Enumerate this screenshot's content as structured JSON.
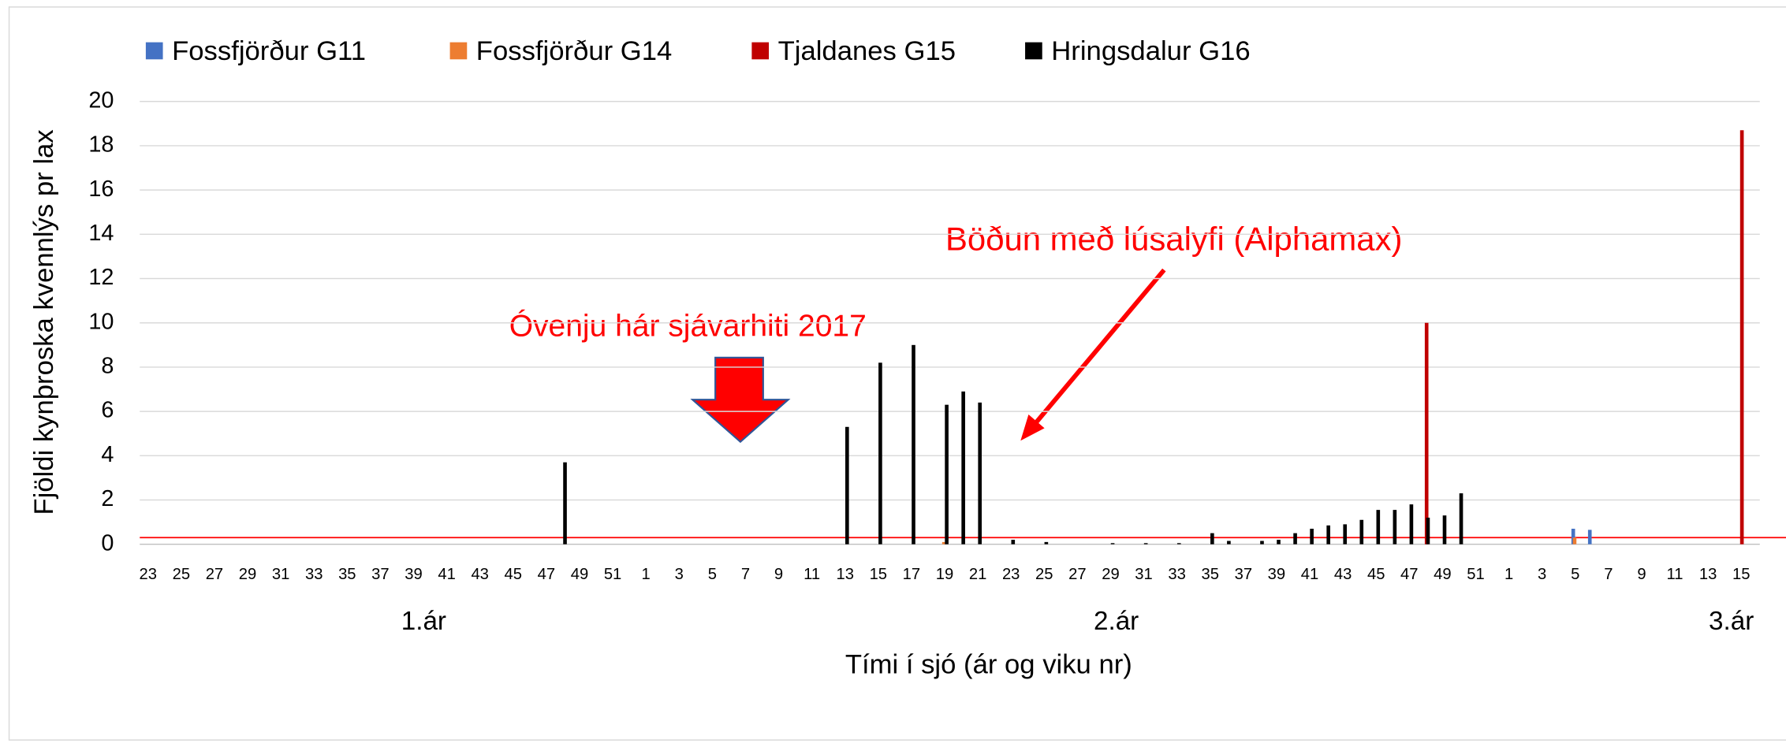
{
  "chart_data": {
    "type": "bar",
    "ylabel": "Fjöldi kynþroska kvennlýs pr lax",
    "xlabel": "Tími í sjó (ár og viku nr)",
    "year_labels": [
      "1.ár",
      "2.ár",
      "3.ár"
    ],
    "annotations": [
      "Óvenju hár sjávarhiti 2017",
      "Böðun með lúsalyfi (Alphamax)"
    ],
    "ylim": [
      0,
      20
    ],
    "yticks": [
      0,
      2,
      4,
      6,
      8,
      10,
      12,
      14,
      16,
      18,
      20
    ],
    "grid": true,
    "legend": "top",
    "threshold": {
      "value": 0.3,
      "color": "#ff0000"
    },
    "categories": [
      23,
      null,
      25,
      null,
      27,
      null,
      29,
      null,
      31,
      null,
      33,
      null,
      35,
      null,
      37,
      null,
      39,
      null,
      41,
      null,
      43,
      null,
      45,
      null,
      47,
      null,
      49,
      null,
      51,
      null,
      1,
      null,
      3,
      null,
      5,
      null,
      7,
      null,
      9,
      null,
      11,
      null,
      13,
      null,
      15,
      null,
      17,
      null,
      19,
      null,
      21,
      null,
      23,
      null,
      25,
      null,
      27,
      null,
      29,
      null,
      31,
      null,
      33,
      null,
      35,
      null,
      37,
      null,
      39,
      null,
      41,
      null,
      43,
      null,
      45,
      null,
      47,
      null,
      49,
      null,
      51,
      null,
      1,
      null,
      3,
      null,
      5,
      null,
      7,
      null,
      9,
      null,
      11,
      null,
      13,
      null,
      15
    ],
    "series": [
      {
        "name": "Fossfjörður G11",
        "color": "#4472c4",
        "values": [
          null,
          null,
          null,
          null,
          null,
          null,
          null,
          null,
          null,
          null,
          null,
          null,
          null,
          null,
          null,
          null,
          null,
          null,
          null,
          null,
          null,
          null,
          null,
          null,
          null,
          null,
          null,
          null,
          null,
          null,
          null,
          null,
          null,
          null,
          null,
          null,
          null,
          null,
          null,
          null,
          null,
          null,
          null,
          null,
          null,
          null,
          null,
          null,
          null,
          null,
          null,
          null,
          null,
          null,
          null,
          null,
          null,
          null,
          null,
          null,
          null,
          null,
          null,
          null,
          null,
          null,
          null,
          null,
          null,
          null,
          null,
          null,
          null,
          null,
          null,
          null,
          null,
          null,
          null,
          null,
          null,
          null,
          null,
          null,
          null,
          null,
          0.7,
          0.65,
          null,
          null,
          null,
          null,
          null,
          null,
          null,
          null,
          null
        ]
      },
      {
        "name": "Fossfjörður G14",
        "color": "#ed7d31",
        "values": [
          null,
          null,
          null,
          null,
          null,
          null,
          null,
          null,
          null,
          null,
          null,
          null,
          null,
          null,
          null,
          null,
          null,
          null,
          null,
          null,
          null,
          null,
          null,
          null,
          null,
          null,
          null,
          null,
          null,
          null,
          null,
          null,
          null,
          null,
          null,
          null,
          null,
          null,
          null,
          null,
          null,
          null,
          null,
          null,
          null,
          null,
          null,
          null,
          0.1,
          null,
          null,
          null,
          null,
          null,
          null,
          null,
          null,
          null,
          null,
          null,
          null,
          null,
          null,
          null,
          null,
          null,
          null,
          null,
          null,
          null,
          null,
          null,
          null,
          null,
          null,
          null,
          null,
          null,
          null,
          null,
          null,
          null,
          null,
          null,
          null,
          null,
          0.3,
          null,
          null,
          null,
          null,
          null,
          null,
          null,
          null,
          null,
          null
        ]
      },
      {
        "name": "Tjaldanes G15",
        "color": "#c00000",
        "values": [
          null,
          null,
          null,
          null,
          null,
          null,
          null,
          null,
          null,
          null,
          null,
          null,
          null,
          null,
          null,
          null,
          null,
          null,
          null,
          null,
          null,
          null,
          null,
          null,
          null,
          null,
          null,
          null,
          null,
          null,
          null,
          null,
          null,
          null,
          null,
          null,
          null,
          null,
          null,
          null,
          null,
          null,
          null,
          null,
          null,
          null,
          null,
          null,
          null,
          null,
          null,
          null,
          null,
          null,
          null,
          null,
          null,
          null,
          null,
          null,
          null,
          null,
          null,
          null,
          null,
          null,
          null,
          null,
          null,
          null,
          null,
          null,
          null,
          null,
          null,
          null,
          null,
          10.0,
          null,
          null,
          null,
          null,
          null,
          null,
          null,
          null,
          null,
          null,
          null,
          null,
          null,
          null,
          null,
          null,
          null,
          null,
          18.7
        ]
      },
      {
        "name": "Hringsdalur G16",
        "color": "#000000",
        "values": [
          null,
          null,
          null,
          null,
          null,
          null,
          null,
          null,
          null,
          null,
          null,
          null,
          null,
          null,
          null,
          null,
          null,
          null,
          null,
          null,
          null,
          null,
          null,
          null,
          null,
          3.7,
          null,
          null,
          null,
          null,
          null,
          null,
          null,
          null,
          null,
          null,
          null,
          null,
          null,
          null,
          null,
          null,
          5.3,
          null,
          8.2,
          null,
          9.0,
          null,
          6.3,
          6.9,
          6.4,
          null,
          0.2,
          null,
          0.1,
          null,
          null,
          null,
          0.05,
          null,
          0.05,
          null,
          0.05,
          null,
          0.5,
          0.15,
          null,
          0.15,
          0.2,
          0.5,
          0.7,
          0.85,
          0.9,
          1.1,
          1.55,
          1.55,
          1.8,
          1.2,
          1.3,
          2.3,
          null,
          null,
          null,
          null,
          null,
          null,
          null,
          null,
          null,
          null,
          null,
          null,
          null,
          null,
          null,
          null,
          null
        ]
      }
    ]
  }
}
